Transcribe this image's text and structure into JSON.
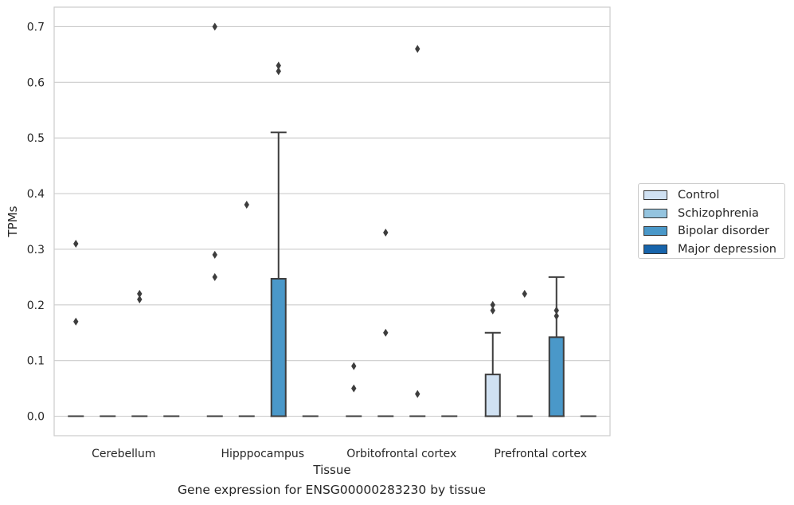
{
  "chart_data": {
    "type": "boxplot",
    "xlabel": "Tissue",
    "ylabel": "TPMs",
    "caption": "Gene expression for ENSG00000283230 by tissue",
    "ylim": [
      -0.035,
      0.735
    ],
    "yticks": [
      0.0,
      0.1,
      0.2,
      0.3,
      0.4,
      0.5,
      0.6,
      0.7
    ],
    "ytick_labels": [
      "0.0",
      "0.1",
      "0.2",
      "0.3",
      "0.4",
      "0.5",
      "0.6",
      "0.7"
    ],
    "grid": "horizontal",
    "legend_position": "right",
    "categories": [
      "Cerebellum",
      "Hipppocampus",
      "Orbitofrontal cortex",
      "Prefrontal cortex"
    ],
    "series": [
      {
        "name": "Control",
        "color": "#d0e1f2",
        "boxes": [
          {
            "q1": 0,
            "median": 0,
            "q3": 0,
            "whisker_low": 0,
            "whisker_high": 0,
            "outliers": [
              0.31,
              0.17
            ]
          },
          {
            "q1": 0,
            "median": 0,
            "q3": 0,
            "whisker_low": 0,
            "whisker_high": 0,
            "outliers": [
              0.7,
              0.29,
              0.25
            ]
          },
          {
            "q1": 0,
            "median": 0,
            "q3": 0,
            "whisker_low": 0,
            "whisker_high": 0,
            "outliers": [
              0.09,
              0.05
            ]
          },
          {
            "q1": 0,
            "median": 0,
            "q3": 0.075,
            "whisker_low": 0,
            "whisker_high": 0.15,
            "outliers": [
              0.2,
              0.19
            ]
          }
        ]
      },
      {
        "name": "Schizophrenia",
        "color": "#94c4df",
        "boxes": [
          {
            "q1": 0,
            "median": 0,
            "q3": 0,
            "whisker_low": 0,
            "whisker_high": 0,
            "outliers": []
          },
          {
            "q1": 0,
            "median": 0,
            "q3": 0,
            "whisker_low": 0,
            "whisker_high": 0,
            "outliers": [
              0.38
            ]
          },
          {
            "q1": 0,
            "median": 0,
            "q3": 0,
            "whisker_low": 0,
            "whisker_high": 0,
            "outliers": [
              0.33,
              0.15
            ]
          },
          {
            "q1": 0,
            "median": 0,
            "q3": 0,
            "whisker_low": 0,
            "whisker_high": 0,
            "outliers": [
              0.22
            ]
          }
        ]
      },
      {
        "name": "Bipolar disorder",
        "color": "#4a98c9",
        "boxes": [
          {
            "q1": 0,
            "median": 0,
            "q3": 0,
            "whisker_low": 0,
            "whisker_high": 0,
            "outliers": [
              0.22,
              0.21
            ]
          },
          {
            "q1": 0,
            "median": 0,
            "q3": 0.247,
            "whisker_low": 0,
            "whisker_high": 0.51,
            "outliers": [
              0.63,
              0.62
            ]
          },
          {
            "q1": 0,
            "median": 0,
            "q3": 0,
            "whisker_low": 0,
            "whisker_high": 0,
            "outliers": [
              0.66,
              0.04
            ]
          },
          {
            "q1": 0,
            "median": 0,
            "q3": 0.142,
            "whisker_low": 0,
            "whisker_high": 0.25,
            "outliers": [
              0.19,
              0.18
            ]
          }
        ]
      },
      {
        "name": "Major depression",
        "color": "#1764ab",
        "boxes": [
          {
            "q1": 0,
            "median": 0,
            "q3": 0,
            "whisker_low": 0,
            "whisker_high": 0,
            "outliers": []
          },
          {
            "q1": 0,
            "median": 0,
            "q3": 0,
            "whisker_low": 0,
            "whisker_high": 0,
            "outliers": []
          },
          {
            "q1": 0,
            "median": 0,
            "q3": 0,
            "whisker_low": 0,
            "whisker_high": 0,
            "outliers": []
          },
          {
            "q1": 0,
            "median": 0,
            "q3": 0,
            "whisker_low": 0,
            "whisker_high": 0,
            "outliers": []
          }
        ]
      }
    ]
  }
}
